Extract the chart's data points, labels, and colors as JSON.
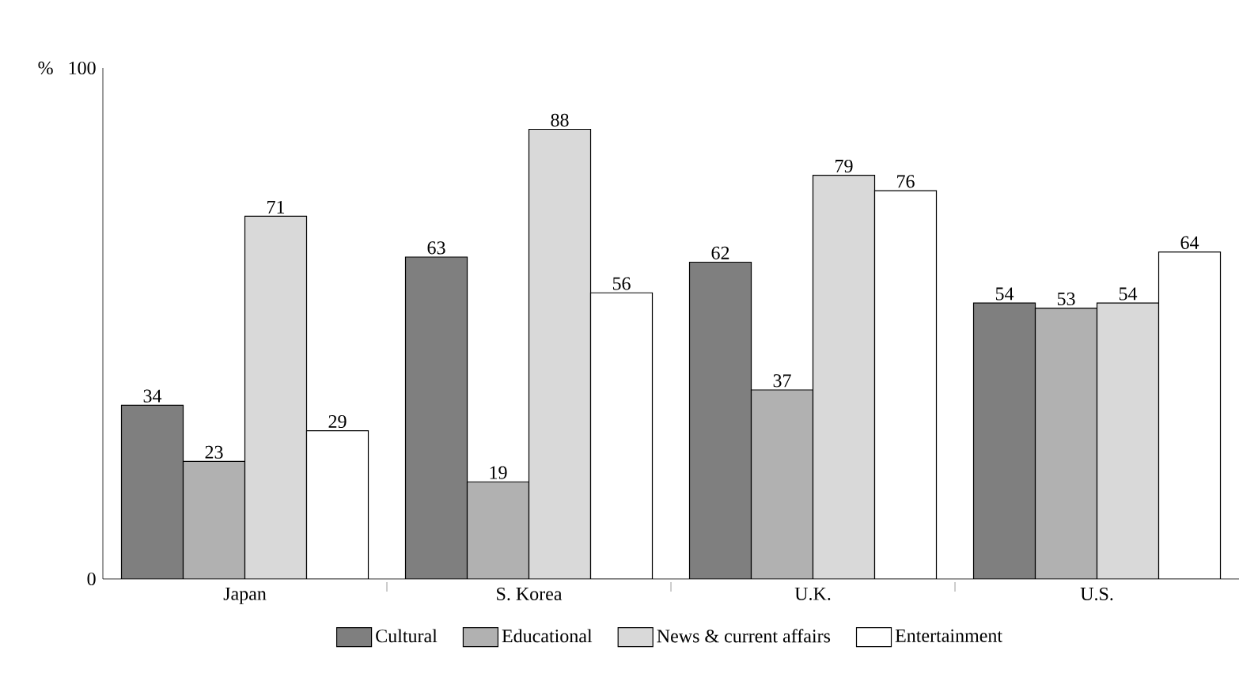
{
  "chart_data": {
    "type": "bar",
    "ylabel": "%",
    "categories": [
      "Japan",
      "S. Korea",
      "U.K.",
      "U.S."
    ],
    "series": [
      {
        "name": "Cultural",
        "color": "#7f7f7f",
        "values": [
          34,
          63,
          62,
          54
        ]
      },
      {
        "name": "Educational",
        "color": "#b1b1b1",
        "values": [
          23,
          19,
          37,
          53
        ]
      },
      {
        "name": "News & current affairs",
        "color": "#d9d9d9",
        "values": [
          71,
          88,
          79,
          54
        ]
      },
      {
        "name": "Entertainment",
        "color": "#ffffff",
        "values": [
          29,
          56,
          76,
          64
        ]
      }
    ],
    "ylim": [
      0,
      100
    ],
    "yticks": [
      0,
      100
    ],
    "data_labels": true,
    "legend": "bottom",
    "grid": false
  }
}
